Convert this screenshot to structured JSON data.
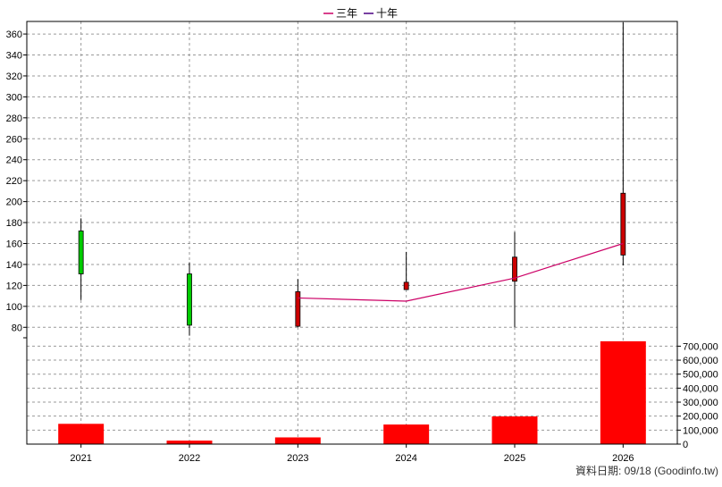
{
  "legend": [
    {
      "label": "三年",
      "color": "#cc0066"
    },
    {
      "label": "十年",
      "color": "#4b0082"
    }
  ],
  "footer": "資料日期: 09/18  (Goodinfo.tw)",
  "chart_data": [
    {
      "type": "candlestick",
      "categories": [
        "2021",
        "2022",
        "2023",
        "2024",
        "2025",
        "2026"
      ],
      "ylim": [
        70,
        372
      ],
      "yticks": [
        80,
        100,
        120,
        140,
        160,
        180,
        200,
        220,
        240,
        260,
        280,
        300,
        320,
        340,
        360
      ],
      "grid": true,
      "candles": [
        {
          "x": "2021",
          "open": 131,
          "close": 172,
          "high": 184,
          "low": 106,
          "color": "#00cc00"
        },
        {
          "x": "2022",
          "open": 131,
          "close": 82,
          "high": 142,
          "low": 72,
          "color": "#00cc00"
        },
        {
          "x": "2023",
          "open": 81,
          "close": 114,
          "high": 126,
          "low": 80,
          "color": "#cc0000"
        },
        {
          "x": "2024",
          "open": 116,
          "close": 123,
          "high": 152,
          "low": 116,
          "color": "#cc0000"
        },
        {
          "x": "2025",
          "open": 124,
          "close": 147,
          "high": 171,
          "low": 80,
          "color": "#cc0000"
        },
        {
          "x": "2026",
          "open": 149,
          "close": 208,
          "high": 371,
          "low": 139,
          "color": "#cc0000"
        }
      ],
      "lines": [
        {
          "name": "三年",
          "color": "#cc0066",
          "points": [
            [
              "2023",
              108
            ],
            [
              "2024",
              105
            ],
            [
              "2025",
              127
            ],
            [
              "2026",
              160
            ]
          ]
        }
      ]
    },
    {
      "type": "bar",
      "categories": [
        "2021",
        "2022",
        "2023",
        "2024",
        "2025",
        "2026"
      ],
      "values": [
        145000,
        25000,
        48000,
        140000,
        198000,
        735000
      ],
      "ylim": [
        0,
        760000
      ],
      "yticks": [
        0,
        100000,
        200000,
        300000,
        400000,
        500000,
        600000,
        700000
      ],
      "yticklabels": [
        "0",
        "100,000",
        "200,000",
        "300,000",
        "400,000",
        "500,000",
        "600,000",
        "700,000"
      ],
      "color": "#ff0000"
    }
  ]
}
